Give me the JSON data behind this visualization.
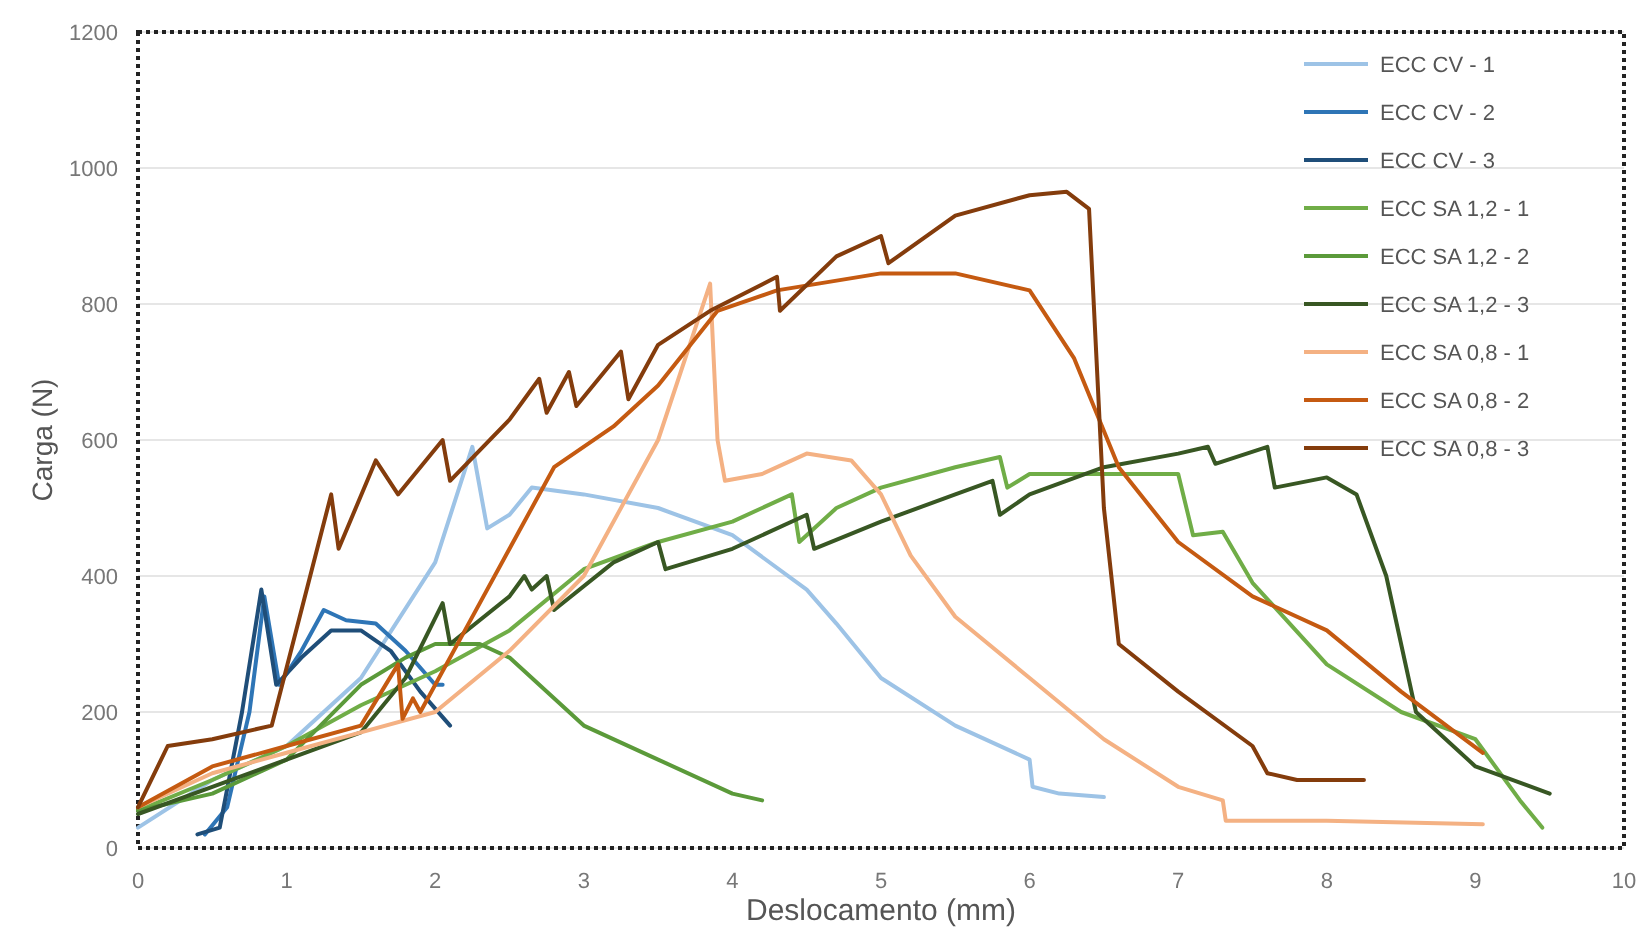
{
  "chart_data": {
    "type": "line",
    "xlabel": "Deslocamento (mm)",
    "ylabel": "Carga (N)",
    "xlim": [
      0,
      10
    ],
    "xticks": [
      0,
      1,
      2,
      3,
      4,
      5,
      6,
      7,
      8,
      9,
      10
    ],
    "ylim": [
      0,
      1200
    ],
    "yticks": [
      0,
      200,
      400,
      600,
      800,
      1000,
      1200
    ],
    "grid": "y",
    "legend": "top right",
    "marker": "none",
    "line_style": "solid",
    "series": [
      {
        "name": "ECC CV - 1",
        "color": "#9dc3e6",
        "x": [
          0,
          0.5,
          1,
          1.5,
          2,
          2.25,
          2.35,
          2.5,
          2.65,
          3,
          3.5,
          4,
          4.5,
          4.7,
          5,
          5.5,
          6,
          6.02,
          6.2,
          6.5
        ],
        "values": [
          30,
          100,
          150,
          250,
          420,
          590,
          470,
          490,
          530,
          520,
          500,
          460,
          380,
          330,
          250,
          180,
          130,
          90,
          80,
          75
        ]
      },
      {
        "name": "ECC CV - 2",
        "color": "#2e75b6",
        "x": [
          0.45,
          0.6,
          0.75,
          0.85,
          0.95,
          1.1,
          1.25,
          1.4,
          1.6,
          1.8,
          2,
          2.05
        ],
        "values": [
          20,
          60,
          200,
          370,
          240,
          290,
          350,
          335,
          330,
          290,
          240,
          240
        ]
      },
      {
        "name": "ECC CV - 3",
        "color": "#1f4e79",
        "x": [
          0.4,
          0.55,
          0.7,
          0.83,
          0.93,
          1.1,
          1.3,
          1.5,
          1.7,
          1.9,
          2.1
        ],
        "values": [
          20,
          30,
          200,
          380,
          240,
          280,
          320,
          320,
          290,
          230,
          180
        ]
      },
      {
        "name": "ECC SA 1,2 - 1",
        "color": "#70ad47",
        "x": [
          0,
          0.5,
          1,
          1.5,
          2,
          2.5,
          3,
          3.5,
          4,
          4.4,
          4.45,
          4.7,
          5,
          5.5,
          5.8,
          5.85,
          6,
          6.5,
          7,
          7.1,
          7.3,
          7.5,
          8,
          8.5,
          9,
          9.3,
          9.45
        ],
        "values": [
          55,
          100,
          150,
          210,
          260,
          320,
          410,
          450,
          480,
          520,
          450,
          500,
          530,
          560,
          575,
          530,
          550,
          550,
          550,
          460,
          465,
          390,
          270,
          200,
          160,
          70,
          30
        ]
      },
      {
        "name": "ECC SA 1,2 - 2",
        "color": "#5b9a3a",
        "x": [
          0,
          0.5,
          1,
          1.5,
          1.8,
          2,
          2.3,
          2.5,
          3,
          3.5,
          4,
          4.2
        ],
        "values": [
          55,
          80,
          130,
          240,
          280,
          300,
          300,
          280,
          180,
          130,
          80,
          70
        ]
      },
      {
        "name": "ECC SA 1,2 - 3",
        "color": "#385723",
        "x": [
          0,
          0.5,
          1,
          1.5,
          1.8,
          2.05,
          2.1,
          2.5,
          2.6,
          2.65,
          2.75,
          2.8,
          3.2,
          3.5,
          3.55,
          4,
          4.5,
          4.55,
          5,
          5.5,
          5.75,
          5.8,
          6,
          6.5,
          7,
          7.2,
          7.25,
          7.6,
          7.65,
          8,
          8.2,
          8.4,
          8.6,
          9,
          9.5
        ],
        "values": [
          50,
          90,
          130,
          170,
          250,
          360,
          300,
          370,
          400,
          380,
          400,
          350,
          420,
          450,
          410,
          440,
          490,
          440,
          480,
          520,
          540,
          490,
          520,
          560,
          580,
          590,
          565,
          590,
          530,
          545,
          520,
          400,
          200,
          120,
          80
        ]
      },
      {
        "name": "ECC SA 0,8 - 1",
        "color": "#f4b183",
        "x": [
          0,
          0.5,
          1,
          1.5,
          2,
          2.5,
          3,
          3.5,
          3.85,
          3.9,
          3.95,
          4.2,
          4.5,
          4.8,
          5,
          5.2,
          5.5,
          6,
          6.5,
          7,
          7.3,
          7.32,
          8,
          9.05
        ],
        "values": [
          60,
          110,
          140,
          170,
          200,
          290,
          400,
          600,
          830,
          600,
          540,
          550,
          580,
          570,
          520,
          430,
          340,
          250,
          160,
          90,
          70,
          40,
          40,
          35
        ]
      },
      {
        "name": "ECC SA 0,8 - 2",
        "color": "#c55a11",
        "x": [
          0,
          0.5,
          1,
          1.5,
          1.75,
          1.78,
          1.85,
          1.9,
          2.2,
          2.5,
          2.8,
          3.2,
          3.5,
          3.9,
          4.3,
          5,
          5.5,
          6,
          6.3,
          6.6,
          7,
          7.5,
          8,
          8.5,
          9.05
        ],
        "values": [
          60,
          120,
          150,
          180,
          270,
          190,
          220,
          200,
          320,
          440,
          560,
          620,
          680,
          790,
          820,
          845,
          845,
          820,
          720,
          560,
          450,
          370,
          320,
          230,
          140
        ]
      },
      {
        "name": "ECC SA 0,8 - 3",
        "color": "#843c0c",
        "x": [
          0,
          0.2,
          0.5,
          0.9,
          1.3,
          1.35,
          1.6,
          1.75,
          2.05,
          2.1,
          2.5,
          2.7,
          2.75,
          2.9,
          2.95,
          3.25,
          3.3,
          3.5,
          3.85,
          4.3,
          4.32,
          4.7,
          5,
          5.05,
          5.5,
          6,
          6.25,
          6.4,
          6.5,
          6.6,
          7,
          7.5,
          7.6,
          7.8,
          8.25
        ],
        "values": [
          60,
          150,
          160,
          180,
          520,
          440,
          570,
          520,
          600,
          540,
          630,
          690,
          640,
          700,
          650,
          730,
          660,
          740,
          790,
          840,
          790,
          870,
          900,
          860,
          930,
          960,
          965,
          940,
          500,
          300,
          230,
          150,
          110,
          100,
          100
        ]
      }
    ]
  }
}
